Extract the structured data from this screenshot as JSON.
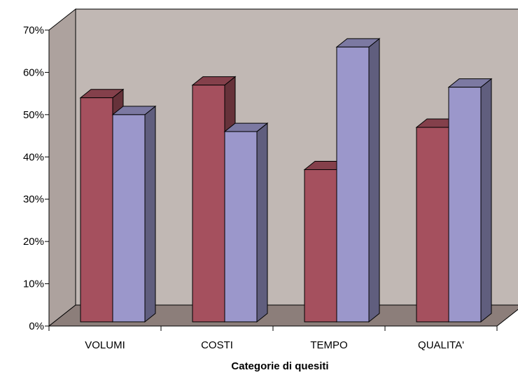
{
  "chart_data": {
    "type": "bar",
    "style": "3d-clustered",
    "categories": [
      "VOLUMI",
      "COSTI",
      "TEMPO",
      "QUALITA'"
    ],
    "series": [
      {
        "values": [
          0.53,
          0.56,
          0.36,
          0.46
        ],
        "color": "#A5505E"
      },
      {
        "values": [
          0.49,
          0.45,
          0.65,
          0.555
        ],
        "color": "#9B97CB"
      }
    ],
    "ylim": [
      0,
      0.7
    ],
    "yticks": [
      0,
      0.1,
      0.2,
      0.3,
      0.4,
      0.5,
      0.6,
      0.7
    ],
    "ytick_labels": [
      "0%",
      "10%",
      "20%",
      "30%",
      "40%",
      "50%",
      "60%",
      "70%"
    ],
    "xlabel": "Categorie di quesiti",
    "ylabel": "",
    "title": "",
    "grid": false,
    "legend": "none",
    "colors": {
      "back_wall": "#C1B8B4",
      "side_wall": "#ADA29E",
      "floor": "#8C7E7A"
    }
  }
}
